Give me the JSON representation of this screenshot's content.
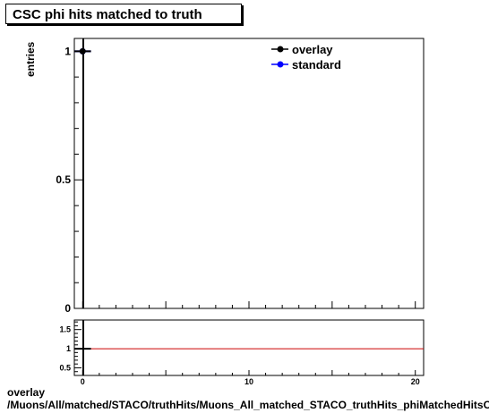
{
  "chart_data": [
    {
      "type": "scatter",
      "title": "CSC phi hits matched to truth",
      "ylabel": "entries",
      "xlim": [
        -0.5,
        20.5
      ],
      "ylim": [
        0,
        1.05
      ],
      "y_ticks": [
        {
          "value": 0,
          "label": "0"
        },
        {
          "value": 0.5,
          "label": "0.5"
        },
        {
          "value": 1,
          "label": "1"
        }
      ],
      "legend_position": "top-right",
      "series": [
        {
          "name": "overlay",
          "color": "#000000",
          "x": [
            0
          ],
          "y": [
            1
          ],
          "xerr": [
            0.5
          ]
        },
        {
          "name": "standard",
          "color": "#0000ff",
          "x": [
            0
          ],
          "y": [
            1
          ],
          "xerr": [
            0.5
          ]
        }
      ]
    },
    {
      "type": "line",
      "xlim": [
        -0.5,
        20.5
      ],
      "ylim": [
        0.3,
        1.75
      ],
      "x_ticks": [
        {
          "value": 0,
          "label": "0"
        },
        {
          "value": 10,
          "label": "10"
        },
        {
          "value": 20,
          "label": "20"
        }
      ],
      "y_ticks": [
        {
          "value": 0.5,
          "label": "0.5"
        },
        {
          "value": 1,
          "label": "1"
        },
        {
          "value": 1.5,
          "label": "1.5"
        }
      ],
      "reference_line": {
        "value": 1,
        "color": "#cc0000"
      },
      "series": [
        {
          "color": "#000000",
          "x": [
            0
          ],
          "y": [
            1
          ],
          "xerr": [
            0.5
          ]
        }
      ]
    }
  ],
  "footer": {
    "line1": "overlay",
    "line2": "/Muons/All/matched/STACO/truthHits/Muons_All_matched_STACO_truthHits_phiMatchedHitsCSC"
  }
}
